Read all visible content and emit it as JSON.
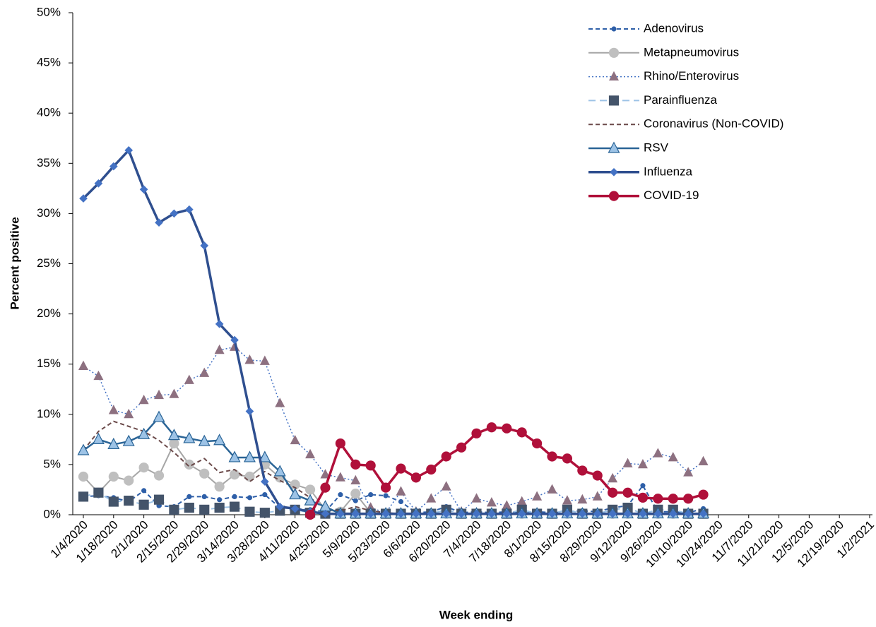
{
  "chart_data": {
    "type": "line",
    "x_label": "Week ending",
    "y_label": "Percent positive",
    "categories": [
      "1/4/2020",
      null,
      "1/18/2020",
      null,
      "2/1/2020",
      null,
      "2/15/2020",
      null,
      "2/29/2020",
      null,
      "3/14/2020",
      null,
      "3/28/2020",
      null,
      "4/11/2020",
      null,
      "4/25/2020",
      null,
      "5/9/2020",
      null,
      "5/23/2020",
      null,
      "6/6/2020",
      null,
      "6/20/2020",
      null,
      "7/4/2020",
      null,
      "7/18/2020",
      null,
      "8/1/2020",
      null,
      "8/15/2020",
      null,
      "8/29/2020",
      null,
      "9/12/2020",
      null,
      "9/26/2020",
      null,
      "10/10/2020",
      null,
      "10/24/2020",
      null,
      "11/7/2020",
      null,
      "11/21/2020",
      null,
      "12/5/2020",
      null,
      "12/19/2020",
      null,
      "1/2/2021"
    ],
    "ylim": [
      0,
      50
    ],
    "yticks": [
      {
        "value": 0,
        "label": "0%"
      },
      {
        "value": 5,
        "label": "5%"
      },
      {
        "value": 10,
        "label": "10%"
      },
      {
        "value": 15,
        "label": "15%"
      },
      {
        "value": 20,
        "label": "20%"
      },
      {
        "value": 25,
        "label": "25%"
      },
      {
        "value": 30,
        "label": "30%"
      },
      {
        "value": 35,
        "label": "35%"
      },
      {
        "value": 40,
        "label": "40%"
      },
      {
        "value": 45,
        "label": "45%"
      },
      {
        "value": 50,
        "label": "50%"
      }
    ],
    "legend_position": "top-right",
    "series": [
      {
        "name": "Adenovirus",
        "color": "#2e5fa8",
        "marker_color": "#2e5fa8",
        "dash": "6 4",
        "width": 2,
        "marker": "circle",
        "marker_size": 3,
        "values": [
          1.8,
          1.9,
          1.7,
          1.3,
          2.4,
          0.9,
          0.8,
          1.8,
          1.8,
          1.5,
          1.8,
          1.7,
          2.0,
          0.7,
          0.6,
          0.5,
          0.3,
          2.0,
          1.4,
          2.0,
          1.9,
          1.3,
          0.2,
          0.3,
          0.8,
          0.2,
          0.3,
          0.2,
          0.3,
          0.2,
          0.3,
          0.2,
          0.3,
          0.4,
          0.3,
          0.7,
          0.9,
          2.9,
          0.3,
          0.3,
          0.2,
          0.6,
          null,
          null,
          null,
          null,
          null,
          null,
          null,
          null,
          null,
          null,
          null
        ]
      },
      {
        "name": "Metapneumovirus",
        "color": "#a6a6a6",
        "marker_color": "#bfbfbf",
        "dash": "",
        "width": 2,
        "marker": "circle",
        "marker_size": 6.5,
        "values": [
          3.8,
          2.2,
          3.8,
          3.4,
          4.7,
          3.9,
          7.1,
          5.0,
          4.1,
          2.8,
          4.0,
          3.8,
          5.0,
          3.7,
          3.0,
          2.5,
          0.5,
          0.3,
          2.1,
          0.2,
          0.1,
          0.1,
          0.1,
          0.1,
          0.1,
          0.1,
          0.1,
          0.1,
          0.1,
          0.1,
          0.1,
          0.1,
          0.1,
          0.1,
          0.1,
          0.1,
          0.1,
          0.1,
          0.1,
          0.1,
          0.1,
          0.1,
          null,
          null,
          null,
          null,
          null,
          null,
          null,
          null,
          null,
          null,
          null
        ]
      },
      {
        "name": "Rhino/Enterovirus",
        "color": "#4472c4",
        "marker_color": "#8d7080",
        "dash": "2 3",
        "width": 1.5,
        "marker": "triangle",
        "marker_size": 6,
        "values": [
          14.8,
          13.8,
          10.4,
          10.0,
          11.4,
          11.9,
          12.0,
          13.4,
          14.1,
          16.4,
          16.7,
          15.4,
          15.3,
          11.1,
          7.4,
          6.0,
          4.0,
          3.7,
          3.4,
          0.7,
          0.2,
          2.3,
          0.3,
          1.6,
          2.8,
          0.3,
          1.6,
          1.2,
          0.9,
          1.3,
          1.8,
          2.5,
          1.4,
          1.5,
          1.8,
          3.6,
          5.1,
          5.0,
          6.1,
          5.7,
          4.2,
          5.3,
          null,
          null,
          null,
          null,
          null,
          null,
          null,
          null,
          null,
          null,
          null
        ]
      },
      {
        "name": "Parainfluenza",
        "color": "#9dc3e6",
        "marker_color": "#44546a",
        "dash": "10 6",
        "width": 2,
        "marker": "square",
        "marker_size": 6.5,
        "values": [
          1.8,
          2.2,
          1.3,
          1.4,
          1.0,
          1.5,
          0.5,
          0.7,
          0.5,
          0.7,
          0.8,
          0.3,
          0.2,
          0.4,
          0.5,
          0.2,
          0.1,
          0.1,
          0.1,
          0.1,
          0.1,
          0.1,
          0.1,
          0.1,
          0.5,
          0.1,
          0.1,
          0.1,
          0.1,
          0.5,
          0.1,
          0.1,
          0.5,
          0.1,
          0.1,
          0.5,
          0.7,
          0.1,
          0.5,
          0.5,
          0.1,
          0.1,
          null,
          null,
          null,
          null,
          null,
          null,
          null,
          null,
          null,
          null,
          null
        ]
      },
      {
        "name": "Coronavirus (Non-COVID)",
        "color": "#6b4a4a",
        "marker_color": "#6b4a4a",
        "dash": "6 4",
        "width": 2,
        "marker": "none",
        "marker_size": 0,
        "values": [
          6.4,
          8.3,
          9.3,
          8.8,
          8.3,
          7.4,
          6.2,
          4.8,
          5.6,
          4.2,
          4.5,
          3.3,
          4.3,
          3.4,
          2.7,
          1.7,
          0.5,
          0.4,
          0.8,
          0.4,
          0.2,
          0.1,
          0.1,
          0.1,
          0.1,
          0.1,
          0.1,
          0.1,
          0.1,
          0.1,
          0.1,
          0.1,
          0.1,
          0.1,
          0.1,
          0.1,
          0.1,
          0.1,
          0.1,
          0.1,
          0.1,
          0.1,
          null,
          null,
          null,
          null,
          null,
          null,
          null,
          null,
          null,
          null,
          null
        ]
      },
      {
        "name": "RSV",
        "color": "#2a6496",
        "marker_color": "#9dc3e6",
        "dash": "",
        "width": 2.5,
        "marker": "triangle",
        "marker_size": 7.5,
        "values": [
          6.4,
          7.5,
          7.0,
          7.3,
          8.0,
          9.7,
          7.9,
          7.6,
          7.3,
          7.4,
          5.7,
          5.7,
          5.7,
          4.3,
          2.0,
          1.4,
          0.8,
          0.1,
          0.1,
          0.1,
          0.1,
          0.1,
          0.1,
          0.1,
          0.1,
          0.1,
          0.1,
          0.1,
          0.1,
          0.1,
          0.1,
          0.1,
          0.1,
          0.1,
          0.1,
          0.1,
          0.1,
          0.1,
          0.1,
          0.1,
          0.1,
          0.1,
          null,
          null,
          null,
          null,
          null,
          null,
          null,
          null,
          null,
          null,
          null
        ]
      },
      {
        "name": "Influenza",
        "color": "#2f4f8f",
        "marker_color": "#4472c4",
        "dash": "",
        "width": 3.5,
        "marker": "diamond",
        "marker_size": 5,
        "values": [
          31.5,
          33.0,
          34.7,
          36.3,
          32.4,
          29.1,
          30.0,
          30.4,
          26.8,
          19.0,
          17.4,
          10.3,
          3.3,
          0.8,
          0.6,
          0.3,
          0.1,
          0.1,
          0.1,
          0.1,
          0.1,
          0.1,
          0.1,
          0.1,
          0.1,
          0.1,
          0.1,
          0.1,
          0.1,
          0.1,
          0.1,
          0.1,
          0.1,
          0.1,
          0.1,
          0.1,
          0.1,
          0.1,
          0.1,
          0.1,
          0.1,
          0.1,
          null,
          null,
          null,
          null,
          null,
          null,
          null,
          null,
          null,
          null,
          null
        ]
      },
      {
        "name": "COVID-19",
        "color": "#b0103a",
        "marker_color": "#b0103a",
        "dash": "",
        "width": 3.5,
        "marker": "circle",
        "marker_size": 6.5,
        "values": [
          null,
          null,
          null,
          null,
          null,
          null,
          null,
          null,
          null,
          null,
          null,
          null,
          null,
          null,
          null,
          0,
          2.7,
          7.1,
          5.0,
          4.9,
          2.7,
          4.6,
          3.7,
          4.5,
          5.8,
          6.7,
          8.1,
          8.7,
          8.6,
          8.2,
          7.1,
          5.8,
          5.6,
          4.4,
          3.9,
          2.2,
          2.2,
          1.7,
          1.6,
          1.6,
          1.6,
          2.0,
          null,
          null,
          null,
          null,
          null,
          null,
          null,
          null,
          null,
          null,
          null
        ]
      }
    ]
  }
}
